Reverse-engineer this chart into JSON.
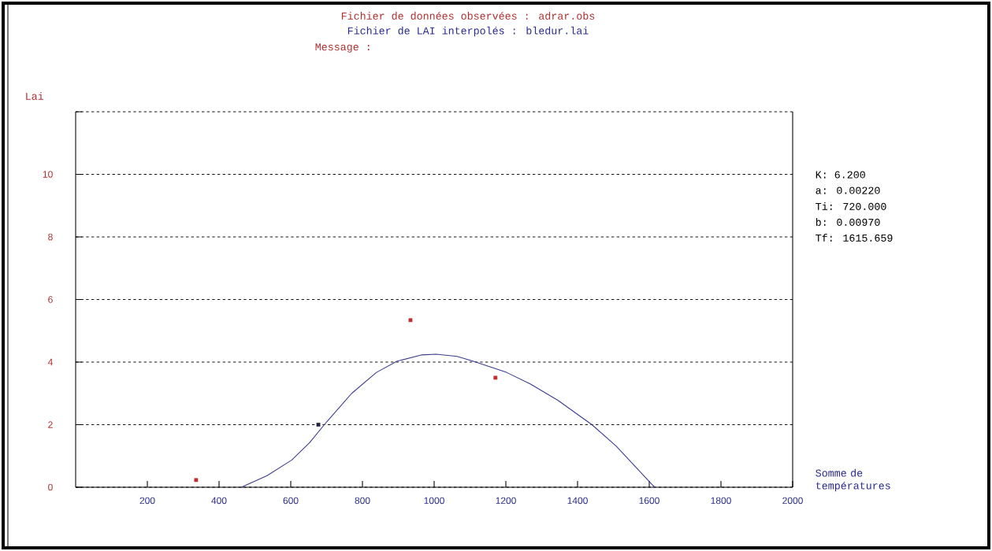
{
  "chart_data": {
    "type": "line",
    "title": "Fichier de données observées : adrar.obs",
    "subtitle": "Fichier de LAI interpolés : bledur.lai",
    "ylabel": "Lai",
    "xlabel": "Somme de températures",
    "annotations": [
      "Message :",
      "K: 6.200",
      "a: 0.00220",
      "Ti: 720.000",
      "b: 0.00970",
      "Tf: 1615.659"
    ],
    "xlim": [
      0,
      2000
    ],
    "ylim": [
      0,
      12
    ],
    "xticks": [
      200,
      400,
      600,
      800,
      1000,
      1200,
      1400,
      1600,
      1800,
      2000
    ],
    "yticks": [
      0,
      2,
      4,
      6,
      8,
      10,
      {
        "value": 12,
        "label": null
      }
    ],
    "grid": "y",
    "series": [
      {
        "color": "#3a3a90",
        "marker": "none",
        "line_style": "solid",
        "x": [
          462,
          534,
          603,
          653,
          701,
          770,
          839,
          897,
          966,
          1006,
          1064,
          1108,
          1202,
          1268,
          1345,
          1440,
          1508,
          1611,
          1616
        ],
        "values": [
          0,
          0.37,
          0.87,
          1.43,
          2.1,
          3.0,
          3.67,
          4.03,
          4.23,
          4.25,
          4.18,
          4.03,
          3.67,
          3.3,
          2.78,
          2.0,
          1.31,
          0.05,
          0
        ]
      },
      {
        "type": "scatter",
        "marker": "square",
        "colors": [
          "#c03030",
          "#202040",
          "#c03030",
          "#c03030"
        ],
        "x": [
          336,
          677,
          934,
          1171
        ],
        "values": [
          0.23,
          2.0,
          5.34,
          3.5
        ]
      }
    ]
  }
}
